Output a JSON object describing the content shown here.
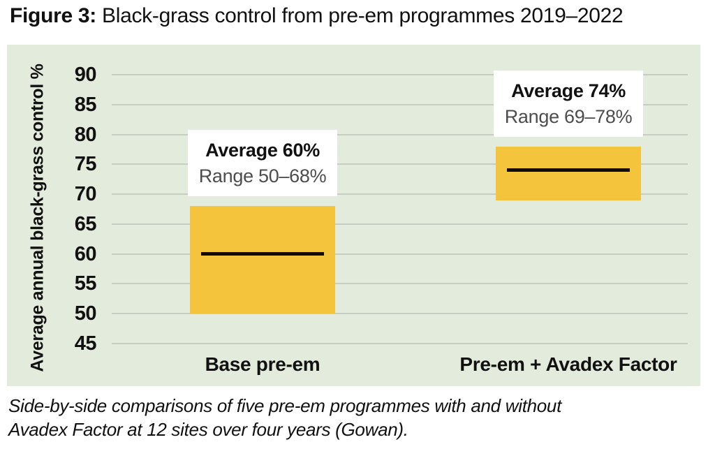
{
  "header": {
    "prefix": "Figure 3:",
    "rest": " Black-grass control from pre-em programmes 2019–2022"
  },
  "chart_data": {
    "type": "bar",
    "subtype": "floating-range-bar",
    "title": "Figure 3: Black-grass control from pre-em programmes 2019–2022",
    "ylabel": "Average annual black-grass control %",
    "ylim": [
      42.5,
      92.5
    ],
    "yticks": [
      90,
      85,
      80,
      75,
      70,
      65,
      60,
      55,
      50,
      45
    ],
    "grid": true,
    "legend": false,
    "categories": [
      "Base pre-em",
      "Pre-em + Avadex Factor"
    ],
    "series": [
      {
        "category": "Base pre-em",
        "low": 50,
        "high": 68,
        "average": 60,
        "annotation": {
          "line1": "Average 60%",
          "line2": "Range 50–68%"
        }
      },
      {
        "category": "Pre-em + Avadex Factor",
        "low": 69,
        "high": 78,
        "average": 74,
        "annotation": {
          "line1": "Average 74%",
          "line2": "Range 69–78%"
        }
      }
    ],
    "colors": {
      "bar": "#f4c43c",
      "average_line": "#0d0d0d",
      "plot_background": "#e3ebdc",
      "gridline": "#c6ccc2",
      "annotation_background": "#ffffff",
      "range_text": "#4d4d4d",
      "text": "#111111"
    }
  },
  "caption": {
    "line1": "Side-by-side comparisons of five pre-em programmes with and without",
    "line2": "Avadex Factor at 12 sites over four years (Gowan)."
  }
}
